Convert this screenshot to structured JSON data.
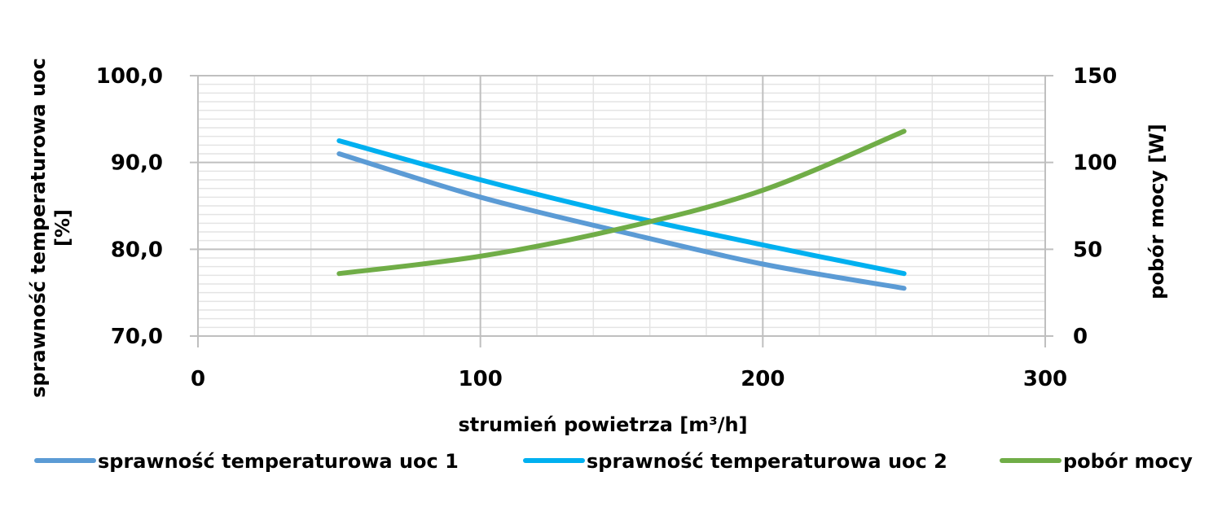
{
  "chart_data": {
    "type": "line",
    "xlabel": "strumień powietrza [m³/h]",
    "ylabel": "sprawność temperaturowa uoc [%]",
    "ylabel_line1": "sprawność temperaturowa uoc",
    "ylabel_line2": "[%]",
    "y2label": "pobór mocy [W]",
    "xlim": [
      0,
      300
    ],
    "ylim": [
      70,
      100
    ],
    "y2lim": [
      0,
      150
    ],
    "x_ticks": [
      "0",
      "100",
      "200",
      "300"
    ],
    "y_ticks": [
      "70,0",
      "80,0",
      "90,0",
      "100,0"
    ],
    "y2_ticks": [
      "0",
      "50",
      "100",
      "150"
    ],
    "grid": true,
    "legend_position": "bottom",
    "series": [
      {
        "name": "sprawność temperaturowa uoc 1",
        "axis": "left",
        "color": "#5b9bd5",
        "x": [
          50,
          100,
          150,
          200,
          250
        ],
        "y": [
          91.0,
          86.0,
          82.0,
          78.3,
          75.5
        ]
      },
      {
        "name": "sprawność temperaturowa uoc 2",
        "axis": "left",
        "color": "#00b0f0",
        "x": [
          50,
          100,
          150,
          200,
          250
        ],
        "y": [
          92.5,
          88.0,
          84.0,
          80.5,
          77.2
        ]
      },
      {
        "name": "pobór mocy",
        "axis": "right",
        "color": "#70ad47",
        "x": [
          50,
          100,
          150,
          200,
          250
        ],
        "y": [
          36,
          46,
          62,
          84,
          118
        ]
      }
    ]
  }
}
